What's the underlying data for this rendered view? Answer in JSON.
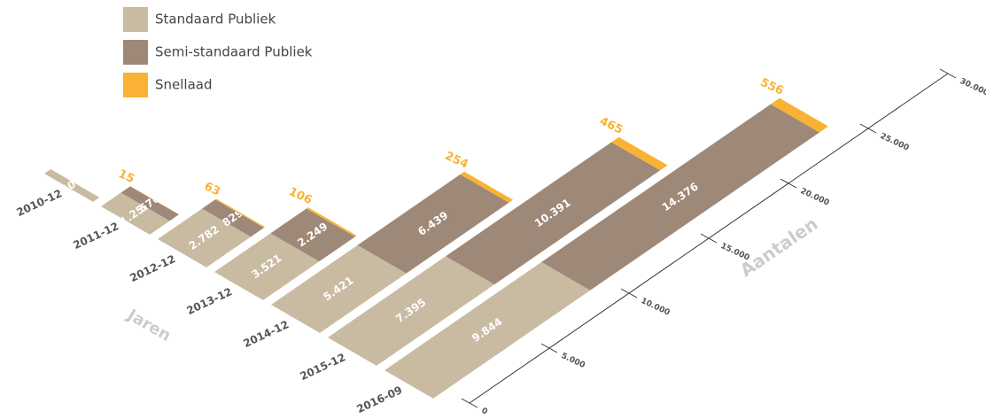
{
  "chart_data": {
    "type": "isometric-stacked-bar",
    "categories": [
      "2010-12",
      "2011-12",
      "2012-12",
      "2013-12",
      "2014-12",
      "2015-12",
      "2016-09"
    ],
    "series": [
      {
        "name": "Standaard Publiek",
        "color": "#c9bba2",
        "values": [
          400,
          1250,
          2782,
          3521,
          5421,
          7395,
          9844
        ],
        "value_labels": [
          "400",
          "1.250",
          "2.782",
          "3.521",
          "5.421",
          "7.395",
          "9.844"
        ]
      },
      {
        "name": "Semi-standaard Publiek",
        "color": "#9e8878",
        "values": [
          null,
          576,
          829,
          2249,
          6439,
          10391,
          14376
        ],
        "value_labels": [
          null,
          "576",
          "829",
          "2.249",
          "6.439",
          "10.391",
          "14.376"
        ]
      },
      {
        "name": "Snellaad",
        "color": "#f9b234",
        "values": [
          null,
          15,
          63,
          106,
          254,
          465,
          556
        ]
      }
    ],
    "xlabel": "Jaren",
    "ylabel": "Aantalen",
    "ylim": [
      0,
      30000
    ],
    "yticks": [
      0,
      {
        "value": 5000,
        "label": "5.000"
      },
      {
        "value": 10000,
        "label": "10.000"
      },
      {
        "value": 15000,
        "label": "15.000"
      },
      {
        "value": 20000,
        "label": "20.000"
      },
      {
        "value": 25000,
        "label": "25.000"
      },
      {
        "value": 30000,
        "label": "30.000"
      }
    ]
  }
}
